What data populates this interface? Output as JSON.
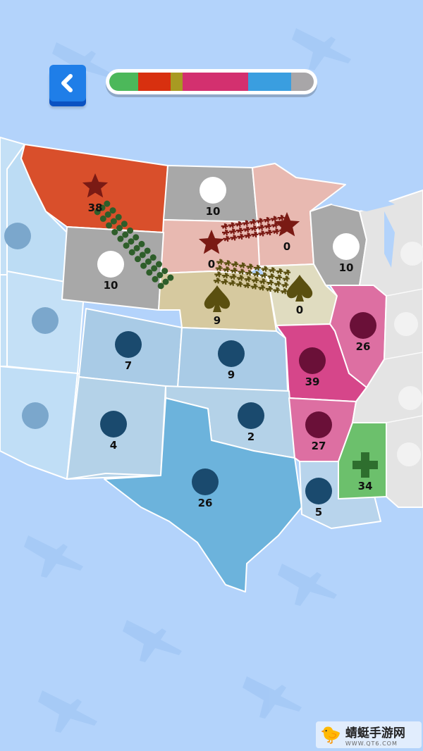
{
  "header": {
    "back_icon": "chevron-left-icon",
    "back_color": "#1f7ee8"
  },
  "territory_bar": [
    {
      "team": "green",
      "color": "#4cb85a",
      "share": 14
    },
    {
      "team": "red",
      "color": "#d8300f",
      "share": 16
    },
    {
      "team": "olive",
      "color": "#a89a22",
      "share": 6
    },
    {
      "team": "magenta",
      "color": "#d3306f",
      "share": 32
    },
    {
      "team": "blue",
      "color": "#3a9ee0",
      "share": 21
    },
    {
      "team": "neutral",
      "color": "#a8a6a8",
      "share": 11
    }
  ],
  "states": [
    {
      "name": "montana",
      "value": "38",
      "icon": "star-icon",
      "color": "#d94f2b"
    },
    {
      "name": "north-dakota",
      "value": "10",
      "icon": "circle-icon",
      "color": "#a8a8a8"
    },
    {
      "name": "south-dakota",
      "value": "0",
      "icon": "star-icon",
      "color": "#e8b9b1"
    },
    {
      "name": "minnesota",
      "value": "0",
      "icon": "star-icon",
      "color": "#e8b9b1"
    },
    {
      "name": "wisconsin",
      "value": "10",
      "icon": "circle-icon",
      "color": "#a8a8a8"
    },
    {
      "name": "wyoming",
      "value": "10",
      "icon": "circle-icon",
      "color": "#a8a8a8"
    },
    {
      "name": "nebraska",
      "value": "9",
      "icon": "spade-icon",
      "color": "#d6c99f"
    },
    {
      "name": "iowa",
      "value": "0",
      "icon": "spade-icon",
      "color": "#e0dcc0"
    },
    {
      "name": "illinois",
      "value": "26",
      "icon": "circle-icon",
      "color": "#dd6fa2"
    },
    {
      "name": "missouri",
      "value": "39",
      "icon": "circle-icon",
      "color": "#d6468a"
    },
    {
      "name": "arkansas",
      "value": "27",
      "icon": "circle-icon",
      "color": "#dd6fa2"
    },
    {
      "name": "mississippi",
      "value": "34",
      "icon": "cross-icon",
      "color": "#6cc06c"
    },
    {
      "name": "louisiana",
      "value": "5",
      "icon": "circle-icon",
      "color": "#b8d4ec"
    },
    {
      "name": "texas",
      "value": "26",
      "icon": "circle-icon",
      "color": "#6cb3dc"
    },
    {
      "name": "oklahoma",
      "value": "2",
      "icon": "circle-icon",
      "color": "#b4d2e8"
    },
    {
      "name": "kansas",
      "value": "9",
      "icon": "circle-icon",
      "color": "#a9cbe6"
    },
    {
      "name": "colorado",
      "value": "7",
      "icon": "circle-icon",
      "color": "#a9cbe6"
    },
    {
      "name": "new-mexico",
      "value": "4",
      "icon": "circle-icon",
      "color": "#b4d2e8"
    }
  ],
  "watermark": {
    "title": "蜻蜓手游网",
    "url": "WWW.QT6.COM"
  }
}
